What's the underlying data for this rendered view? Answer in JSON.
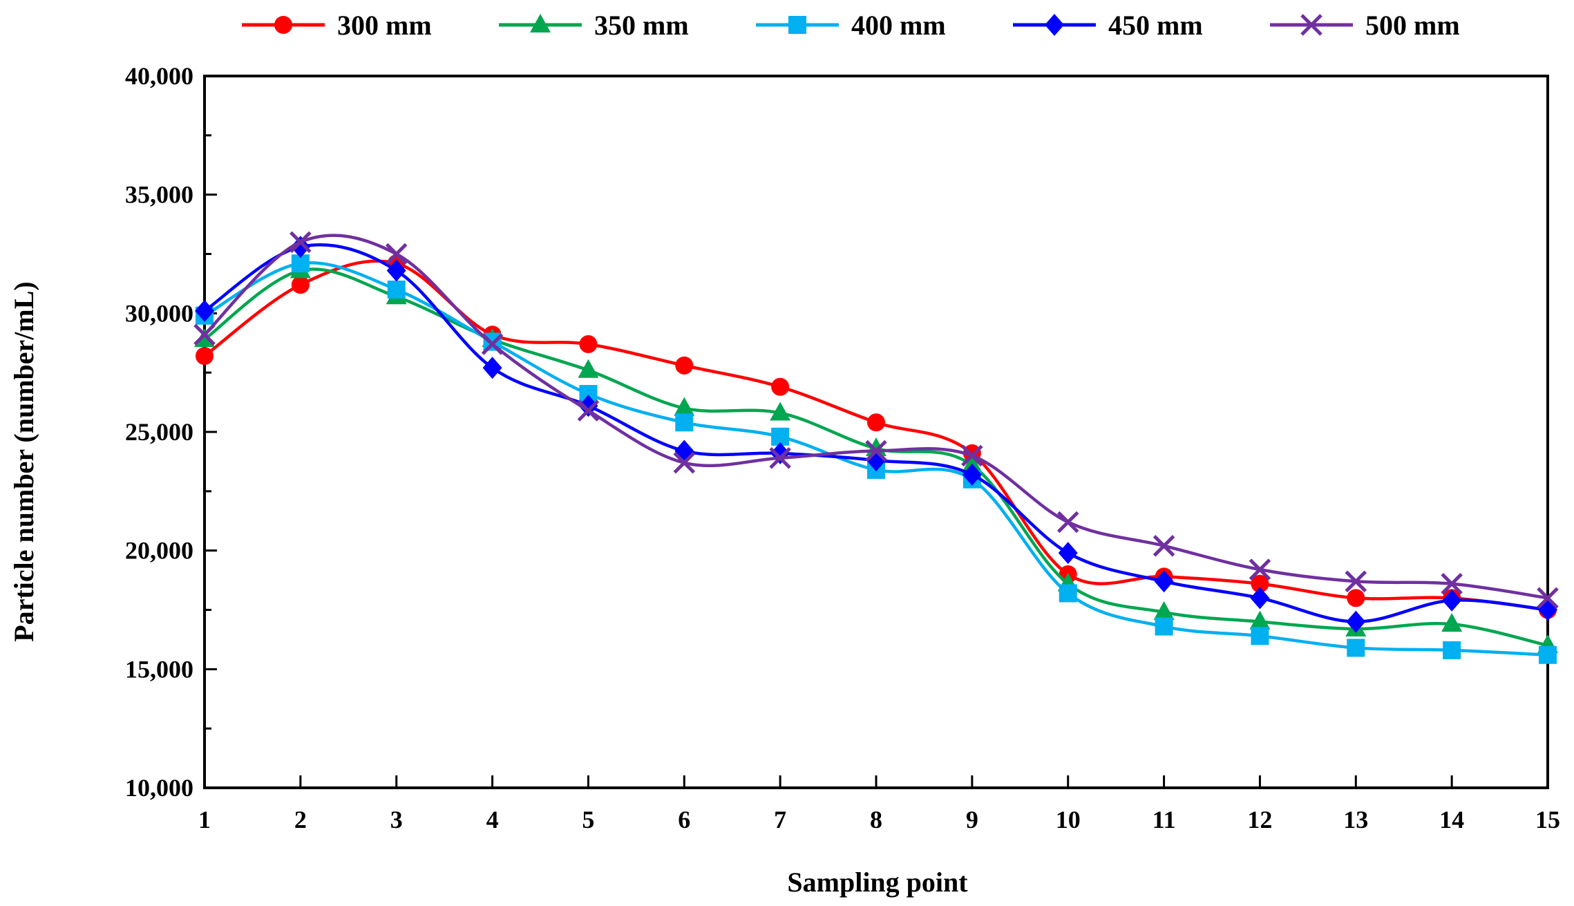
{
  "chart_data": {
    "type": "line",
    "title": "",
    "xlabel": "Sampling point",
    "ylabel": "Particle number (number/mL)",
    "x": [
      1,
      2,
      3,
      4,
      5,
      6,
      7,
      8,
      9,
      10,
      11,
      12,
      13,
      14,
      15
    ],
    "xlim": [
      1,
      15
    ],
    "ylim": [
      10000,
      40000
    ],
    "yticks": [
      10000,
      15000,
      20000,
      25000,
      30000,
      35000,
      40000
    ],
    "ytick_labels": [
      "10,000",
      "15,000",
      "20,000",
      "25,000",
      "30,000",
      "35,000",
      "40,000"
    ],
    "xtick_labels": [
      "1",
      "2",
      "3",
      "4",
      "5",
      "6",
      "7",
      "8",
      "9",
      "10",
      "11",
      "12",
      "13",
      "14",
      "15"
    ],
    "grid": false,
    "legend_position": "top",
    "series": [
      {
        "name": "300 mm",
        "color": "#ff0000",
        "marker": "circle",
        "values": [
          28200,
          31200,
          32100,
          29100,
          28700,
          27800,
          26900,
          25400,
          24100,
          19000,
          18900,
          18600,
          18000,
          18000,
          17500
        ]
      },
      {
        "name": "350 mm",
        "color": "#00a650",
        "marker": "triangle",
        "values": [
          28900,
          31800,
          30700,
          28900,
          27600,
          26000,
          25800,
          24300,
          23600,
          18600,
          17400,
          17000,
          16700,
          16900,
          16000
        ]
      },
      {
        "name": "400 mm",
        "color": "#00b0f0",
        "marker": "square",
        "values": [
          29900,
          32100,
          31000,
          28800,
          26600,
          25400,
          24800,
          23400,
          23000,
          18200,
          16800,
          16400,
          15900,
          15800,
          15600
        ]
      },
      {
        "name": "450 mm",
        "color": "#0000ff",
        "marker": "diamond",
        "values": [
          30100,
          32800,
          31800,
          27700,
          26100,
          24200,
          24100,
          23800,
          23200,
          19900,
          18700,
          18000,
          17000,
          17900,
          17500
        ]
      },
      {
        "name": "500 mm",
        "color": "#7030a0",
        "marker": "x",
        "values": [
          29100,
          33000,
          32500,
          28700,
          25900,
          23700,
          23900,
          24200,
          24000,
          21200,
          20200,
          19200,
          18700,
          18600,
          18000
        ]
      }
    ]
  }
}
